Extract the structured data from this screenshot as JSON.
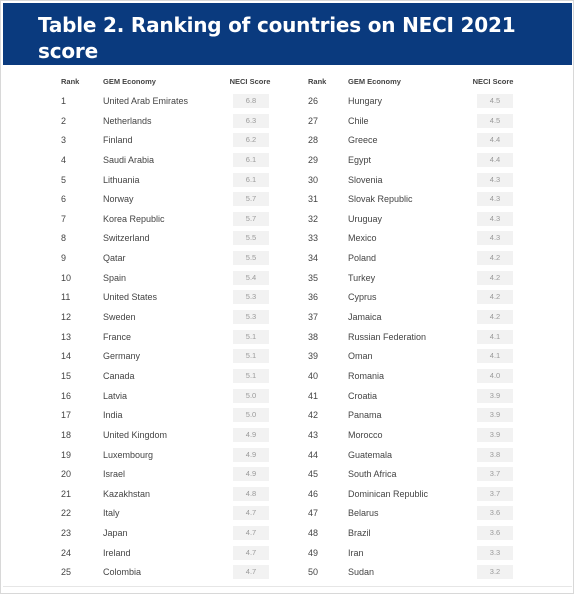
{
  "title": "Table 2. Ranking of countries on NECI 2021 score",
  "columns": {
    "rank": "Rank",
    "economy": "GEM Economy",
    "score": "NECI Score"
  },
  "rows": [
    {
      "rank": "1",
      "economy": "United Arab Emirates",
      "score": "6.8"
    },
    {
      "rank": "2",
      "economy": "Netherlands",
      "score": "6.3"
    },
    {
      "rank": "3",
      "economy": "Finland",
      "score": "6.2"
    },
    {
      "rank": "4",
      "economy": "Saudi Arabia",
      "score": "6.1"
    },
    {
      "rank": "5",
      "economy": "Lithuania",
      "score": "6.1"
    },
    {
      "rank": "6",
      "economy": "Norway",
      "score": "5.7"
    },
    {
      "rank": "7",
      "economy": "Korea Republic",
      "score": "5.7"
    },
    {
      "rank": "8",
      "economy": "Switzerland",
      "score": "5.5"
    },
    {
      "rank": "9",
      "economy": "Qatar",
      "score": "5.5"
    },
    {
      "rank": "10",
      "economy": "Spain",
      "score": "5.4"
    },
    {
      "rank": "11",
      "economy": "United States",
      "score": "5.3"
    },
    {
      "rank": "12",
      "economy": "Sweden",
      "score": "5.3"
    },
    {
      "rank": "13",
      "economy": "France",
      "score": "5.1"
    },
    {
      "rank": "14",
      "economy": "Germany",
      "score": "5.1"
    },
    {
      "rank": "15",
      "economy": "Canada",
      "score": "5.1"
    },
    {
      "rank": "16",
      "economy": "Latvia",
      "score": "5.0"
    },
    {
      "rank": "17",
      "economy": "India",
      "score": "5.0"
    },
    {
      "rank": "18",
      "economy": "United Kingdom",
      "score": "4.9"
    },
    {
      "rank": "19",
      "economy": "Luxembourg",
      "score": "4.9"
    },
    {
      "rank": "20",
      "economy": "Israel",
      "score": "4.9"
    },
    {
      "rank": "21",
      "economy": "Kazakhstan",
      "score": "4.8"
    },
    {
      "rank": "22",
      "economy": "Italy",
      "score": "4.7"
    },
    {
      "rank": "23",
      "economy": "Japan",
      "score": "4.7"
    },
    {
      "rank": "24",
      "economy": "Ireland",
      "score": "4.7"
    },
    {
      "rank": "25",
      "economy": "Colombia",
      "score": "4.7"
    },
    {
      "rank": "26",
      "economy": "Hungary",
      "score": "4.5"
    },
    {
      "rank": "27",
      "economy": "Chile",
      "score": "4.5"
    },
    {
      "rank": "28",
      "economy": "Greece",
      "score": "4.4"
    },
    {
      "rank": "29",
      "economy": "Egypt",
      "score": "4.4"
    },
    {
      "rank": "30",
      "economy": "Slovenia",
      "score": "4.3"
    },
    {
      "rank": "31",
      "economy": "Slovak Republic",
      "score": "4.3"
    },
    {
      "rank": "32",
      "economy": "Uruguay",
      "score": "4.3"
    },
    {
      "rank": "33",
      "economy": "Mexico",
      "score": "4.3"
    },
    {
      "rank": "34",
      "economy": "Poland",
      "score": "4.2"
    },
    {
      "rank": "35",
      "economy": "Turkey",
      "score": "4.2"
    },
    {
      "rank": "36",
      "economy": "Cyprus",
      "score": "4.2"
    },
    {
      "rank": "37",
      "economy": "Jamaica",
      "score": "4.2"
    },
    {
      "rank": "38",
      "economy": "Russian Federation",
      "score": "4.1"
    },
    {
      "rank": "39",
      "economy": "Oman",
      "score": "4.1"
    },
    {
      "rank": "40",
      "economy": "Romania",
      "score": "4.0"
    },
    {
      "rank": "41",
      "economy": "Croatia",
      "score": "3.9"
    },
    {
      "rank": "42",
      "economy": "Panama",
      "score": "3.9"
    },
    {
      "rank": "43",
      "economy": "Morocco",
      "score": "3.9"
    },
    {
      "rank": "44",
      "economy": "Guatemala",
      "score": "3.8"
    },
    {
      "rank": "45",
      "economy": "South Africa",
      "score": "3.7"
    },
    {
      "rank": "46",
      "economy": "Dominican Republic",
      "score": "3.7"
    },
    {
      "rank": "47",
      "economy": "Belarus",
      "score": "3.6"
    },
    {
      "rank": "48",
      "economy": "Brazil",
      "score": "3.6"
    },
    {
      "rank": "49",
      "economy": "Iran",
      "score": "3.3"
    },
    {
      "rank": "50",
      "economy": "Sudan",
      "score": "3.2"
    }
  ],
  "colors": {
    "header_bg": "#0a3a7e",
    "header_text": "#ffffff",
    "score_cell_bg": "#f2f2f2"
  }
}
